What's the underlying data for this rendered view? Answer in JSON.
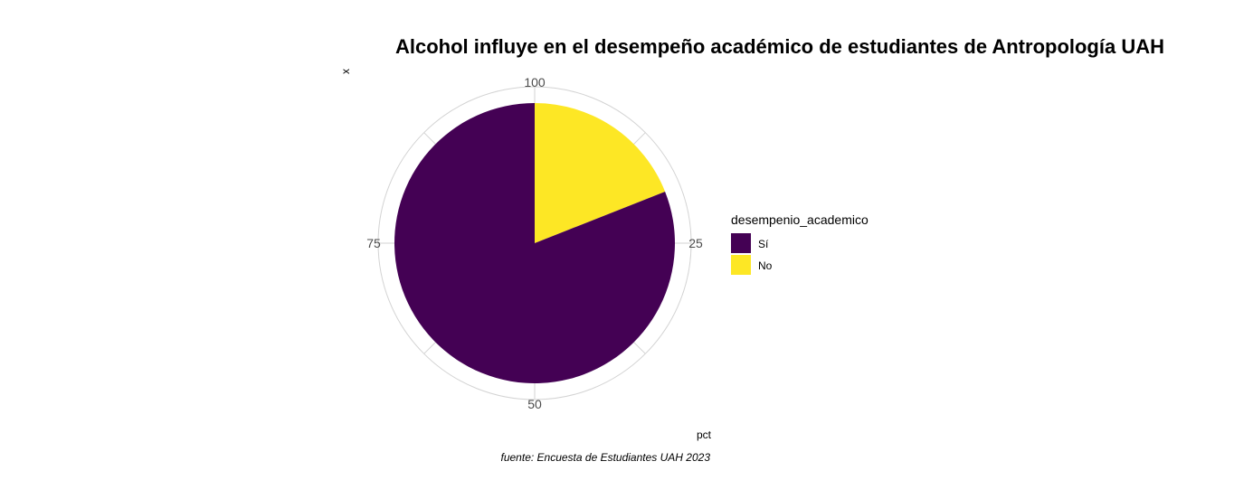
{
  "chart_data": {
    "type": "pie",
    "title": "Alcohol influye en el desempeño académico de estudiantes de Antropología UAH",
    "xlabel": "x",
    "ylabel": "pct",
    "caption": "fuente: Encuesta de Estudiantes UAH 2023",
    "legend_title": "desempenio_academico",
    "legend_position": "right",
    "grid": true,
    "theta_range": [
      0,
      100
    ],
    "ticks": [
      "100",
      "25",
      "50",
      "75"
    ],
    "categories": [
      "Sí",
      "No"
    ],
    "values": [
      81,
      19
    ],
    "colors": [
      "#440154",
      "#FDE725"
    ]
  }
}
